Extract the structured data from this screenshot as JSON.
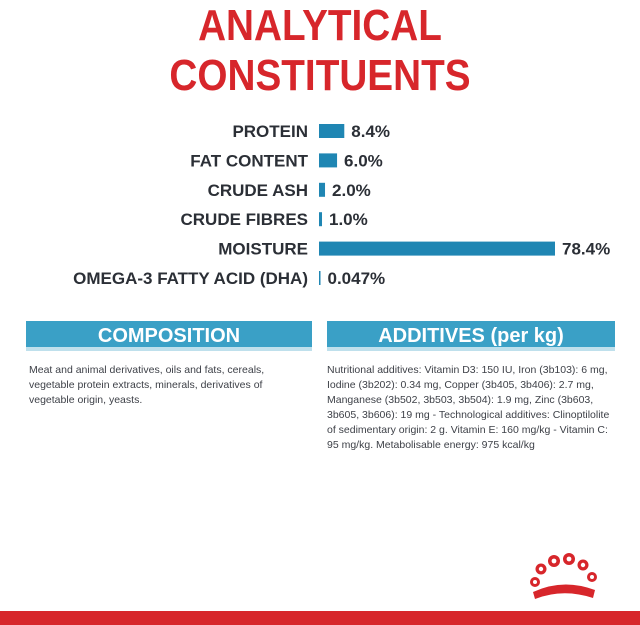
{
  "title": {
    "line1": "ANALYTICAL",
    "line2": "CONSTITUENTS"
  },
  "chart_data": {
    "type": "bar",
    "orientation": "horizontal",
    "categories": [
      "PROTEIN",
      "FAT CONTENT",
      "CRUDE ASH",
      "CRUDE FIBRES",
      "MOISTURE",
      "OMEGA-3 FATTY ACID (DHA)"
    ],
    "values": [
      8.4,
      6.0,
      2.0,
      1.0,
      78.4,
      0.047
    ],
    "value_labels": [
      "8.4%",
      "6.0%",
      "2.0%",
      "1.0%",
      "78.4%",
      "0.047%"
    ],
    "unit": "%",
    "xlim": [
      0,
      78.4
    ],
    "grid": false,
    "bar_color": "#1f86b3"
  },
  "composition": {
    "heading": "COMPOSITION",
    "text": "Meat and animal derivatives, oils and fats, cereals, vegetable protein extracts, minerals, derivatives of vegetable origin, yeasts."
  },
  "additives": {
    "heading": "ADDITIVES (per kg)",
    "text": "Nutritional additives: Vitamin D3: 150 IU, Iron (3b103): 6 mg, Iodine (3b202): 0.34 mg, Copper (3b405, 3b406): 2.7 mg, Manganese (3b502, 3b503, 3b504): 1.9 mg, Zinc (3b603, 3b605, 3b606): 19 mg - Technological additives: Clinoptilolite of sedimentary origin: 2 g. Vitamin E: 160 mg/kg - Vitamin C: 95 mg/kg. Metabolisable energy: 975 kcal/kg"
  },
  "colors": {
    "brand_red": "#d7262b",
    "header_blue": "#3aa0c6",
    "bar_blue": "#1f86b3"
  },
  "logo": {
    "icon": "royal-crown-icon"
  }
}
